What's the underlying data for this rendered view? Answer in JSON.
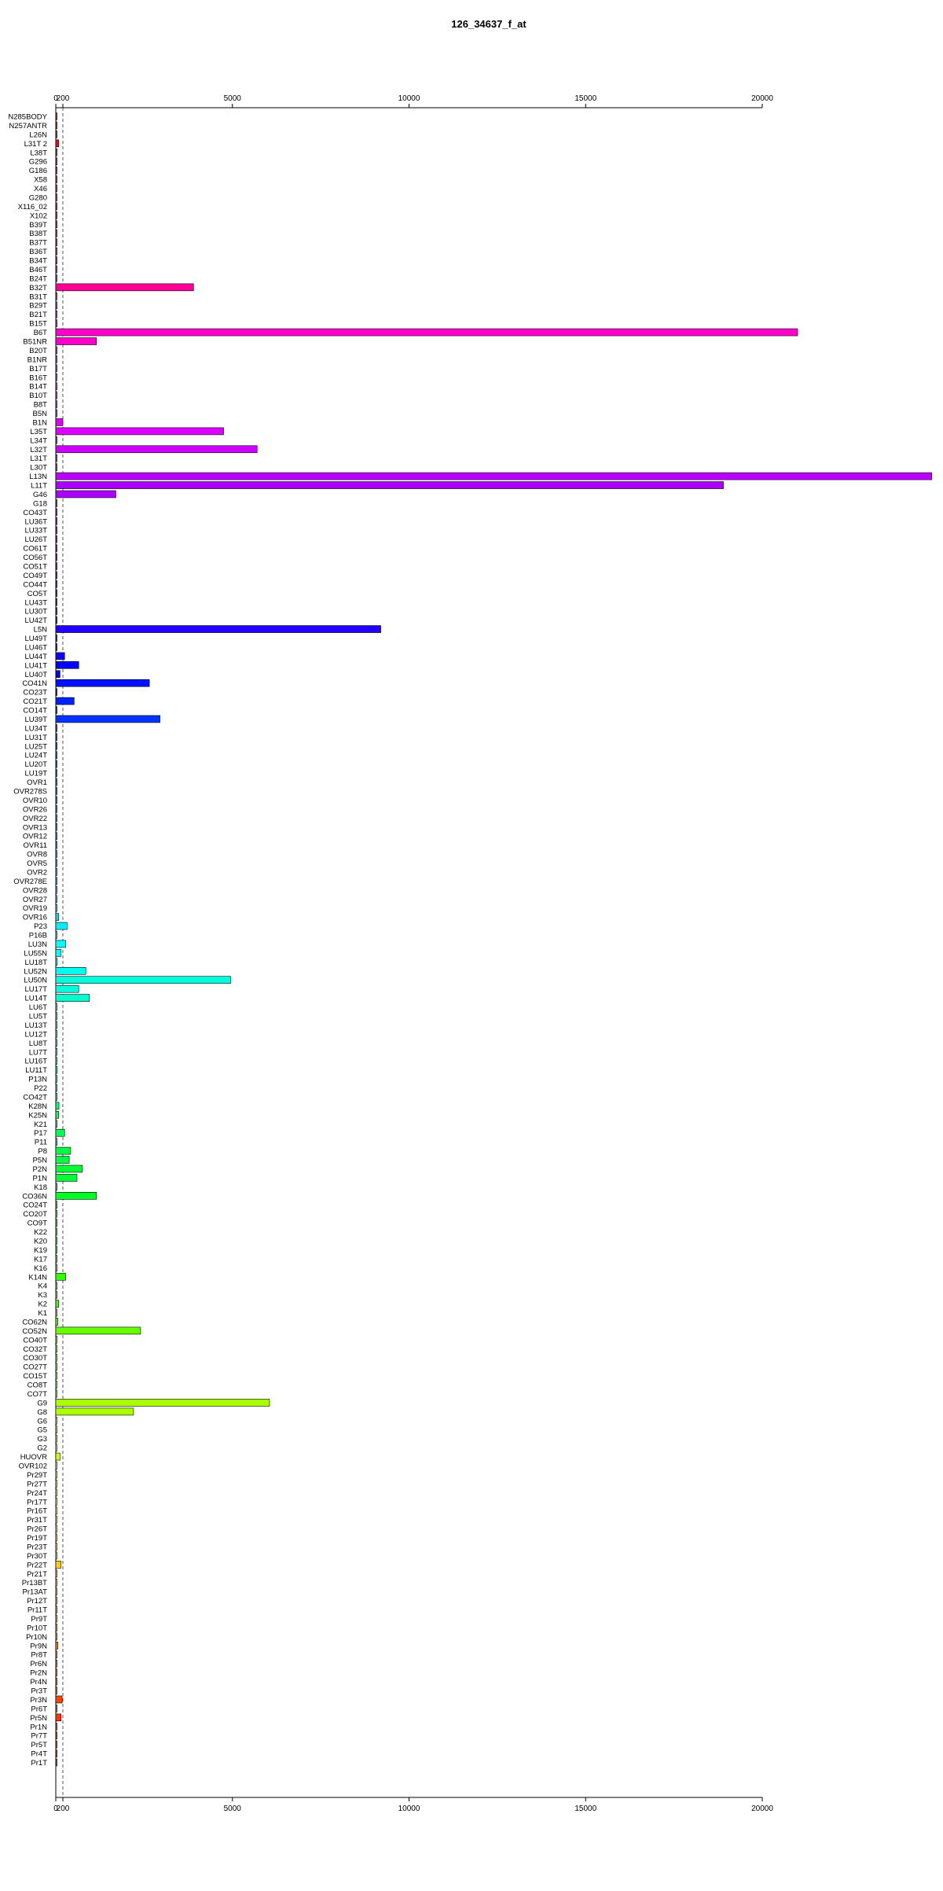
{
  "chart_data": {
    "type": "bar",
    "orientation": "horizontal",
    "title": "126_34637_f_at",
    "xlabel": "",
    "ylabel": "",
    "xlim": [
      0,
      25000
    ],
    "x_ticks": [
      0,
      200,
      5000,
      10000,
      15000,
      20000
    ],
    "reference_lines": [
      0,
      200
    ],
    "grid": false,
    "categories": [
      "N285BODY",
      "N257ANTR",
      "L26N",
      "L31T 2",
      "L38T",
      "G296",
      "G186",
      "X58",
      "X46",
      "G280",
      "X116_02",
      "X102",
      "B39T",
      "B38T",
      "B37T",
      "B36T",
      "B34T",
      "B46T",
      "B24T",
      "B32T",
      "B31T",
      "B29T",
      "B21T",
      "B15T",
      "B6T",
      "B51NR",
      "B20T",
      "B1NR",
      "B17T",
      "B16T",
      "B14T",
      "B10T",
      "B8T",
      "B5N",
      "B1N",
      "L35T",
      "L34T",
      "L32T",
      "L31T",
      "L30T",
      "L13N",
      "L11T",
      "G46",
      "G18",
      "CO43T",
      "LU36T",
      "LU33T",
      "LU26T",
      "CO61T",
      "CO56T",
      "CO51T",
      "CO49T",
      "CO44T",
      "CO5T",
      "LU43T",
      "LU30T",
      "LU42T",
      "L5N",
      "LU49T",
      "LU46T",
      "LU44T",
      "LU41T",
      "LU40T",
      "CO41N",
      "CO23T",
      "CO21T",
      "CO14T",
      "LU39T",
      "LU34T",
      "LU31T",
      "LU25T",
      "LU24T",
      "LU20T",
      "LU19T",
      "OVR1",
      "OVR278S",
      "OVR10",
      "OVR26",
      "OVR22",
      "OVR13",
      "OVR12",
      "OVR11",
      "OVR8",
      "OVR5",
      "OVR2",
      "OVR278E",
      "OVR28",
      "OVR27",
      "OVR19",
      "OVR16",
      "P23",
      "P16B",
      "LU3N",
      "LU55N",
      "LU18T",
      "LU52N",
      "LU50N",
      "LU17T",
      "LU14T",
      "LU6T",
      "LU5T",
      "LU13T",
      "LU12T",
      "LU8T",
      "LU7T",
      "LU16T",
      "LU11T",
      "P13N",
      "P22",
      "CO42T",
      "K28N",
      "K25N",
      "K21",
      "P17",
      "P11",
      "P8",
      "P5N",
      "P2N",
      "P1N",
      "K18",
      "CO36N",
      "CO24T",
      "CO20T",
      "CO9T",
      "K22",
      "K20",
      "K19",
      "K17",
      "K16",
      "K14N",
      "K4",
      "K3",
      "K2",
      "K1",
      "CO62N",
      "CO52N",
      "CO40T",
      "CO32T",
      "CO30T",
      "CO27T",
      "CO15T",
      "CO8T",
      "CO7T",
      "G9",
      "G8",
      "G6",
      "G5",
      "G3",
      "G2",
      "HUOVR",
      "OVR102",
      "Pr29T",
      "Pr27T",
      "Pr24T",
      "Pr17T",
      "Pr16T",
      "Pr31T",
      "Pr26T",
      "Pr19T",
      "Pr23T",
      "Pr30T",
      "Pr22T",
      "Pr21T",
      "Pr13BT",
      "Pr13AT",
      "Pr12T",
      "Pr11T",
      "Pr9T",
      "Pr10T",
      "Pr10N",
      "Pr9N",
      "Pr8T",
      "Pr6N",
      "Pr2N",
      "Pr4N",
      "Pr3T",
      "Pr3N",
      "Pr6T",
      "Pr5N",
      "Pr1N",
      "Pr7T",
      "Pr5T",
      "Pr4T",
      "Pr1T"
    ],
    "values": [
      20,
      20,
      30,
      80,
      10,
      15,
      15,
      10,
      10,
      10,
      10,
      20,
      10,
      10,
      10,
      10,
      10,
      10,
      10,
      3900,
      10,
      10,
      10,
      10,
      21000,
      1150,
      10,
      20,
      10,
      10,
      20,
      10,
      10,
      10,
      200,
      4750,
      20,
      5700,
      20,
      10,
      24800,
      18900,
      1700,
      10,
      10,
      10,
      10,
      10,
      10,
      10,
      10,
      10,
      10,
      20,
      10,
      10,
      10,
      9200,
      20,
      20,
      250,
      650,
      120,
      2650,
      30,
      520,
      30,
      2950,
      10,
      20,
      10,
      10,
      10,
      10,
      10,
      30,
      10,
      10,
      10,
      10,
      10,
      10,
      10,
      10,
      10,
      10,
      10,
      10,
      10,
      80,
      320,
      30,
      280,
      150,
      40,
      850,
      4950,
      650,
      950,
      20,
      20,
      20,
      30,
      30,
      20,
      20,
      40,
      20,
      20,
      20,
      90,
      80,
      10,
      250,
      20,
      420,
      380,
      750,
      600,
      20,
      1150,
      20,
      20,
      20,
      20,
      20,
      20,
      20,
      20,
      280,
      20,
      20,
      80,
      20,
      60,
      2400,
      20,
      20,
      20,
      20,
      20,
      20,
      20,
      6050,
      2200,
      20,
      20,
      20,
      20,
      120,
      20,
      20,
      20,
      20,
      20,
      20,
      20,
      20,
      20,
      20,
      20,
      150,
      20,
      20,
      20,
      20,
      20,
      20,
      20,
      20,
      60,
      20,
      20,
      20,
      20,
      20,
      180,
      20,
      150,
      20,
      20,
      20,
      20,
      20
    ],
    "colors": [
      "#ff0000",
      "#ff0011",
      "#ff0022",
      "#ff0033",
      "#ff0044",
      "#ff0055",
      "#ff0066",
      "#ff0077",
      "#ff0088",
      "#ff0099",
      "#ff00aa",
      "#ff00bb",
      "#ff00cc",
      "#ff00dd",
      "#ff00ee",
      "#ff00ff",
      "#ee00ff",
      "#dd00ff",
      "#cc00ff",
      "#bb00ff",
      "#aa00ff",
      "#9900ff",
      "#8800ff",
      "#7700ff",
      "#6600ff",
      "#5500ff",
      "#4400ff",
      "#3300ff",
      "#2200ff",
      "#1100ff",
      "#0000ff",
      "#0011ff",
      "#0022ff",
      "#0033ff",
      "#0044ff",
      "#0055ff",
      "#0066ff",
      "#0077ff",
      "#0088ff",
      "#0099ff",
      "#00aaff",
      "#00bbff",
      "#00ccff",
      "#00ddff",
      "#00eeff",
      "#00ffff",
      "#00ffee",
      "#00ffdd",
      "#00ffcc",
      "#00ffbb",
      "#00ffaa",
      "#00ff99",
      "#00ff88",
      "#00ff77",
      "#00ff66",
      "#00ff55",
      "#00ff44",
      "#00ff33",
      "#00ff22",
      "#00ff11",
      "#00ff00",
      "#11ff00",
      "#22ff00",
      "#33ff00",
      "#44ff00",
      "#55ff00",
      "#66ff00",
      "#77ff00",
      "#88ff00",
      "#99ff00",
      "#aaff00",
      "#bbff00",
      "#ccff00",
      "#ddff00",
      "#eeff00",
      "#ffff00",
      "#ffee00",
      "#ffdd00",
      "#ffcc00",
      "#ffbb00",
      "#ffaa00",
      "#ff9900",
      "#ff8800",
      "#ff7700",
      "#ff6600",
      "#ff5500",
      "#ff4400",
      "#ff3300",
      "#ff2200",
      "#ff1100"
    ]
  }
}
